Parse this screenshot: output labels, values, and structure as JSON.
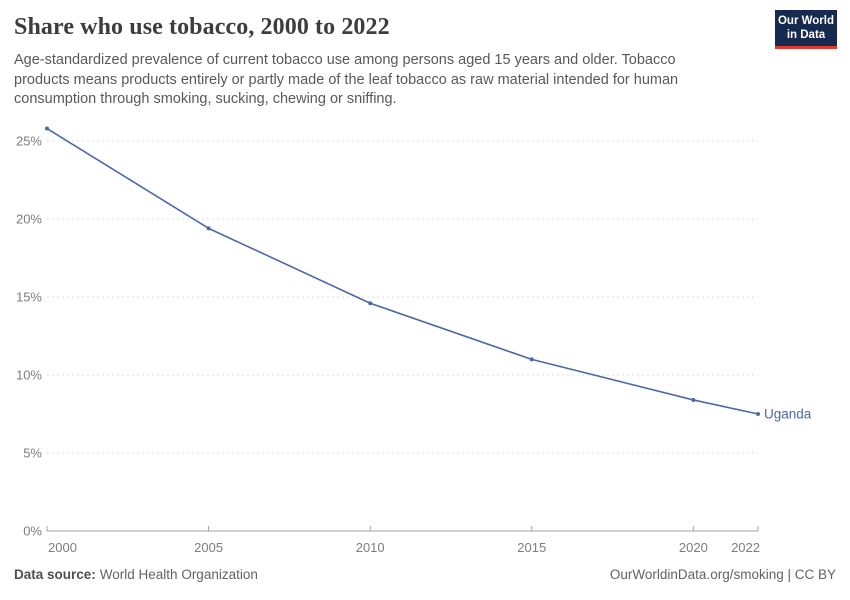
{
  "logo": {
    "line1": "Our World",
    "line2": "in Data"
  },
  "header": {
    "title": "Share who use tobacco, 2000 to 2022",
    "subtitle": "Age-standardized prevalence of current tobacco use among persons aged 15 years and older. Tobacco products means products entirely or partly made of the leaf tobacco as raw material intended for human consumption through smoking, sucking, chewing or sniffing."
  },
  "chart_data": {
    "type": "line",
    "title": "Share who use tobacco, 2000 to 2022",
    "x": [
      2000,
      2005,
      2010,
      2015,
      2020,
      2022
    ],
    "series": [
      {
        "name": "Uganda",
        "values": [
          25.8,
          19.4,
          14.6,
          11.0,
          8.4,
          7.5
        ]
      }
    ],
    "xlim": [
      2000,
      2022
    ],
    "ylim": [
      0,
      26
    ],
    "yticks": [
      0,
      5,
      10,
      15,
      20,
      25
    ],
    "ytick_suffix": "%",
    "xticks": [
      2000,
      2005,
      2010,
      2015,
      2020,
      2022
    ],
    "grid": "horizontal-dashed",
    "legend_position": "end-of-line-label"
  },
  "footer": {
    "source_label": "Data source:",
    "source_value": "World Health Organization",
    "right": "OurWorldinData.org/smoking | CC BY"
  },
  "colors": {
    "series_blue": "#4c69a7",
    "grid": "#dcdcdc",
    "axis": "#a3a3a3",
    "tick_text": "#7d7d7d",
    "title_text": "#3d3d3d",
    "subtitle_text": "#595959",
    "footer_text": "#636363",
    "logo_bg": "#16294e",
    "logo_stripe": "#e0392e"
  }
}
